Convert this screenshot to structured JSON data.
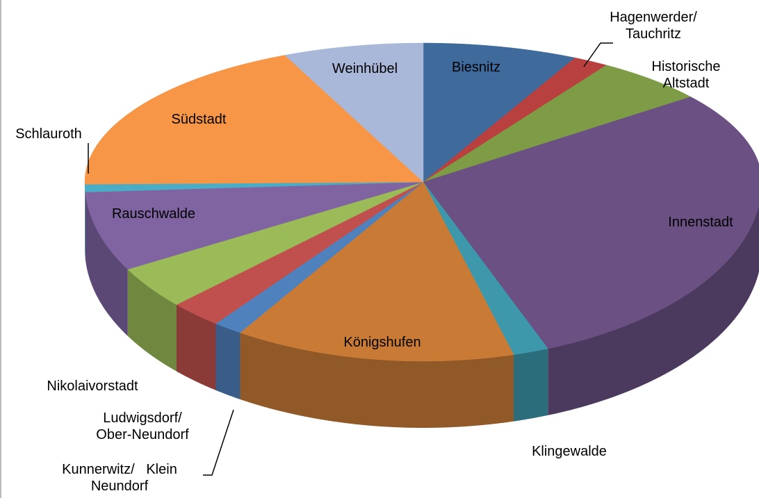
{
  "chart_data": {
    "type": "pie3d",
    "categories": [
      "Biesnitz",
      "Hagenwerder/\nTauchritz",
      "Historische\nAltstadt",
      "Innenstadt",
      "Klingewalde",
      "Königshufen",
      "Kunnerwitz/   Klein\nNeundorf",
      "Ludwigsdorf/\nOber-Neundorf",
      "Nikolaivorstadt",
      "Rauschwalde",
      "Schlauroth",
      "Südstadt",
      "Weinhübel"
    ],
    "values": [
      7.4,
      1.7,
      5.4,
      29.5,
      1.7,
      13.4,
      1.4,
      2.5,
      3.9,
      7.2,
      0.7,
      18.5,
      6.7
    ],
    "colors": [
      "#3f6a9c",
      "#b8413f",
      "#7e9b45",
      "#6a5083",
      "#3c98aa",
      "#c97b36",
      "#4f81bd",
      "#c0504d",
      "#9bbb59",
      "#8064a2",
      "#4bacc6",
      "#f79646",
      "#a9b8d9"
    ]
  }
}
